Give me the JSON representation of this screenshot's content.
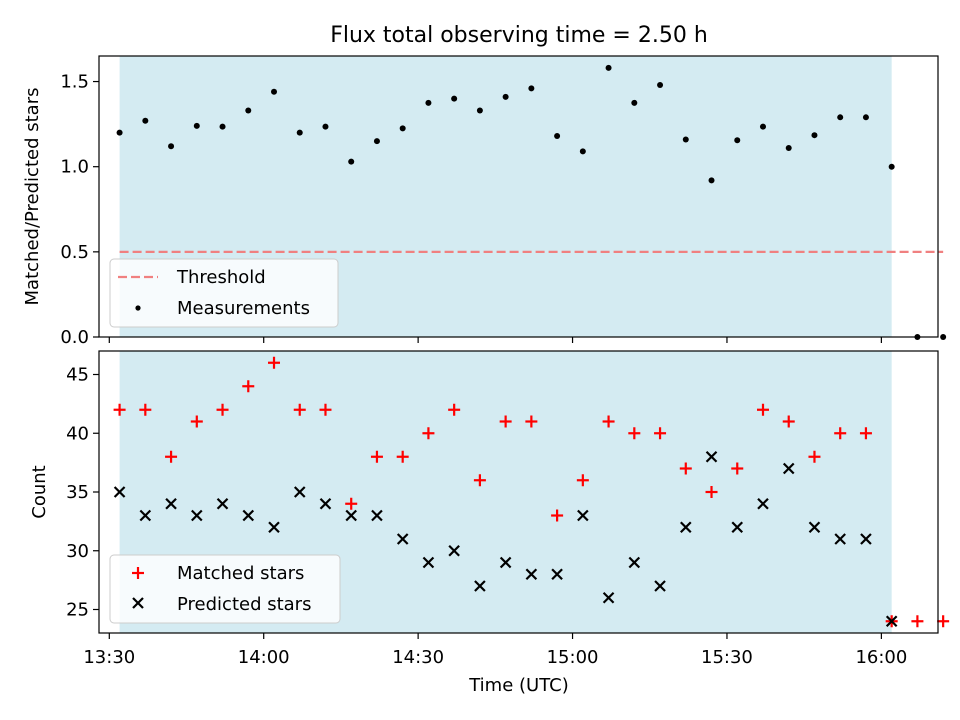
{
  "chart_data": {
    "type": "scatter",
    "title": "Flux total observing time = 2.50 h",
    "xlabel": "Time (UTC)",
    "xlim_minutes": [
      28,
      191
    ],
    "x_ticks": [
      {
        "value": 30,
        "label": "13:30"
      },
      {
        "value": 60,
        "label": "14:00"
      },
      {
        "value": 90,
        "label": "14:30"
      },
      {
        "value": 120,
        "label": "15:00"
      },
      {
        "value": 150,
        "label": "15:30"
      },
      {
        "value": 180,
        "label": "16:00"
      }
    ],
    "observing_window_minutes": [
      32,
      182
    ],
    "window_color": "#add8e6",
    "x_minutes": [
      32,
      37,
      42,
      47,
      52,
      57,
      62,
      67,
      72,
      77,
      82,
      87,
      92,
      97,
      102,
      107,
      112,
      117,
      122,
      127,
      132,
      137,
      142,
      147,
      152,
      157,
      162,
      167,
      172,
      177,
      182,
      187,
      192
    ],
    "top_panel": {
      "ylabel": "Matched/Predicted stars",
      "ylim": [
        0,
        1.65
      ],
      "y_ticks": [
        "0.0",
        "0.5",
        "1.0",
        "1.5"
      ],
      "threshold": {
        "name": "Threshold",
        "value": 0.5,
        "color": "#f08080"
      },
      "measurements": {
        "name": "Measurements",
        "color": "#000000",
        "values": [
          1.2,
          1.27,
          1.12,
          1.24,
          1.235,
          1.33,
          1.44,
          1.2,
          1.235,
          1.03,
          1.15,
          1.225,
          1.375,
          1.4,
          1.33,
          1.41,
          1.46,
          1.18,
          1.09,
          1.58,
          1.375,
          1.48,
          1.16,
          0.92,
          1.155,
          1.235,
          1.11,
          1.185,
          1.29,
          1.29,
          1.0,
          0.0,
          0.0
        ]
      },
      "legend": [
        "Threshold",
        "Measurements"
      ]
    },
    "bottom_panel": {
      "ylabel": "Count",
      "ylim": [
        23,
        47
      ],
      "y_ticks": [
        "25",
        "30",
        "35",
        "40",
        "45"
      ],
      "series": [
        {
          "name": "Matched stars",
          "marker": "+",
          "color": "#ff0000",
          "values": [
            42,
            42,
            38,
            41,
            42,
            44,
            46,
            42,
            42,
            34,
            38,
            38,
            40,
            42,
            36,
            41,
            41,
            33,
            36,
            41,
            40,
            40,
            37,
            35,
            37,
            42,
            41,
            38,
            40,
            40,
            24,
            24,
            24
          ]
        },
        {
          "name": "Predicted stars",
          "marker": "x",
          "color": "#000000",
          "values": [
            35,
            33,
            34,
            33,
            34,
            33,
            32,
            35,
            34,
            33,
            33,
            31,
            29,
            30,
            27,
            29,
            28,
            28,
            33,
            26,
            29,
            27,
            32,
            38,
            32,
            34,
            37,
            32,
            31,
            31,
            24,
            null,
            null
          ]
        }
      ],
      "legend": [
        "Matched stars",
        "Predicted stars"
      ]
    }
  }
}
